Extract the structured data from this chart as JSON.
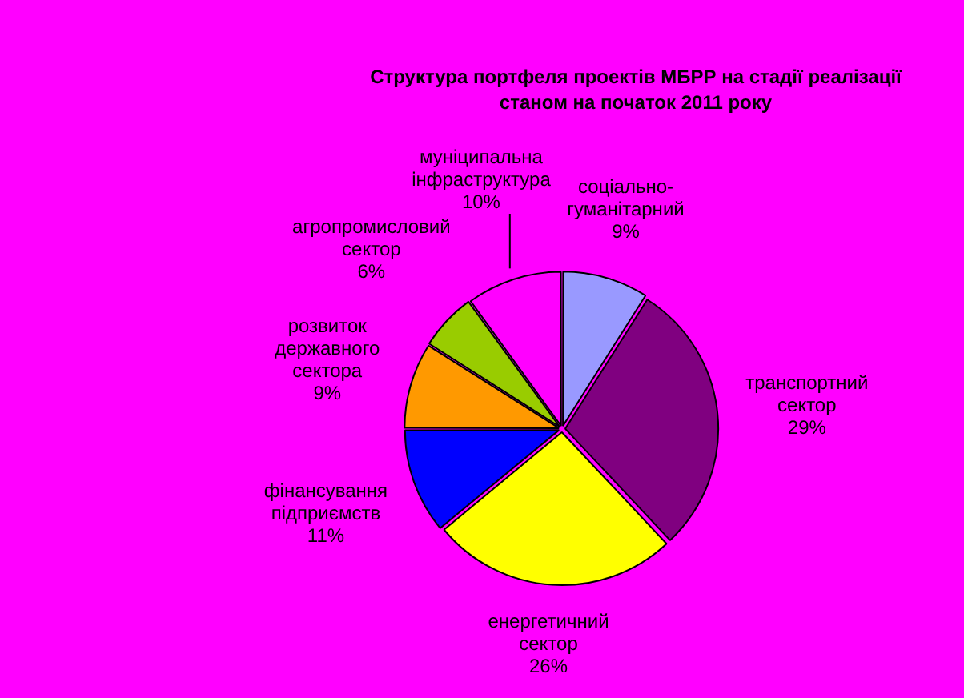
{
  "chart_data": {
    "type": "pie",
    "title": "Структура портфеля проектів МБРР на стадії реалізації станом на початок 2011 року",
    "categories": [
      "соціально-гуманітарний",
      "транспортний сектор",
      "енергетичний сектор",
      "фінансування підприємств",
      "розвиток державного сектора",
      "агропромисловий сектор",
      "муніципальна інфраструктура"
    ],
    "values": [
      9,
      29,
      26,
      11,
      9,
      6,
      10
    ],
    "colors": [
      "#9999ff",
      "#800080",
      "#ffff00",
      "#0000ff",
      "#ff9900",
      "#99cc00",
      "#ff00ff"
    ],
    "value_labels": [
      "9%",
      "29%",
      "26%",
      "11%",
      "9%",
      "6%",
      "10%"
    ]
  }
}
